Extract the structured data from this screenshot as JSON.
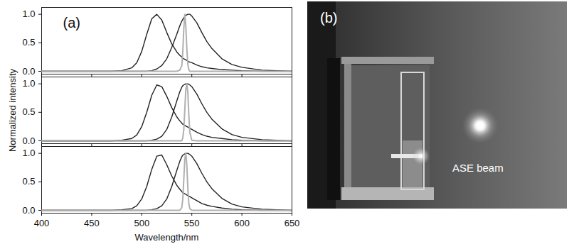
{
  "chart_data": [
    {
      "type": "line",
      "annotation": "(a)",
      "tick_labels": "y",
      "xlim": [
        400,
        650
      ],
      "xticks": [
        400,
        450,
        500,
        550,
        600,
        650
      ],
      "ylim": [
        -0.05,
        1.12
      ],
      "yticks": [
        {
          "value": 0,
          "label": "0.0"
        },
        {
          "value": 0.5,
          "label": "0.5"
        },
        {
          "value": 1,
          "label": "1.0"
        }
      ],
      "x": [
        400,
        450,
        470,
        480,
        490,
        495,
        500,
        505,
        510,
        515,
        520,
        525,
        530,
        535,
        538,
        540,
        541,
        542,
        543,
        544,
        545,
        546,
        547,
        548,
        550,
        555,
        560,
        565,
        570,
        580,
        590,
        600,
        620,
        650
      ],
      "series": [
        {
          "color": "#222222",
          "values": [
            0,
            0,
            0,
            0.01,
            0.06,
            0.15,
            0.35,
            0.65,
            0.92,
            1.0,
            0.9,
            0.68,
            0.48,
            0.34,
            0.28,
            0.25,
            0.23,
            0.22,
            0.21,
            0.2,
            0.19,
            0.18,
            0.17,
            0.16,
            0.15,
            0.11,
            0.08,
            0.06,
            0.05,
            0.03,
            0.02,
            0.01,
            0,
            0
          ]
        },
        {
          "color": "#222222",
          "values": [
            0,
            0,
            0,
            0,
            0,
            0,
            0,
            0,
            0.01,
            0.04,
            0.1,
            0.22,
            0.42,
            0.65,
            0.8,
            0.88,
            0.91,
            0.94,
            0.96,
            0.98,
            0.99,
            1.0,
            1.0,
            1.0,
            0.97,
            0.85,
            0.68,
            0.52,
            0.4,
            0.22,
            0.12,
            0.07,
            0.02,
            0
          ]
        },
        {
          "color": "#b0b0b0",
          "values": [
            0,
            0,
            0,
            0,
            0,
            0,
            0,
            0,
            0,
            0,
            0,
            0,
            0,
            0,
            0.02,
            0.1,
            0.35,
            0.75,
            1.0,
            0.8,
            0.4,
            0.12,
            0.03,
            0,
            0,
            0,
            0,
            0,
            0,
            0,
            0,
            0,
            0,
            0
          ]
        }
      ]
    },
    {
      "type": "line",
      "ylabel": "Normalized intensity",
      "tick_labels": "y",
      "xlim": [
        400,
        650
      ],
      "xticks": [
        400,
        450,
        500,
        550,
        600,
        650
      ],
      "ylim": [
        -0.05,
        1.12
      ],
      "yticks": [
        {
          "value": 0,
          "label": "0.0"
        },
        {
          "value": 0.5,
          "label": "0.5"
        },
        {
          "value": 1,
          "label": "1.0"
        }
      ],
      "x": [
        400,
        450,
        470,
        480,
        490,
        495,
        500,
        505,
        510,
        515,
        520,
        525,
        530,
        535,
        538,
        540,
        541,
        542,
        543,
        544,
        545,
        546,
        547,
        548,
        550,
        555,
        560,
        565,
        570,
        580,
        590,
        600,
        620,
        650
      ],
      "series": [
        {
          "color": "#222222",
          "values": [
            0,
            0,
            0,
            0.01,
            0.04,
            0.1,
            0.25,
            0.5,
            0.8,
            0.98,
            0.95,
            0.78,
            0.58,
            0.42,
            0.35,
            0.31,
            0.29,
            0.28,
            0.27,
            0.26,
            0.25,
            0.24,
            0.23,
            0.22,
            0.2,
            0.15,
            0.11,
            0.08,
            0.06,
            0.04,
            0.02,
            0.01,
            0,
            0
          ]
        },
        {
          "color": "#222222",
          "values": [
            0,
            0,
            0,
            0,
            0,
            0,
            0,
            0,
            0.01,
            0.03,
            0.08,
            0.2,
            0.42,
            0.7,
            0.86,
            0.94,
            0.97,
            0.98,
            0.99,
            1.0,
            1.0,
            1.0,
            0.99,
            0.98,
            0.95,
            0.82,
            0.65,
            0.5,
            0.38,
            0.21,
            0.11,
            0.06,
            0.02,
            0
          ]
        },
        {
          "color": "#b0b0b0",
          "values": [
            0,
            0,
            0,
            0,
            0,
            0,
            0,
            0,
            0,
            0,
            0,
            0,
            0,
            0,
            0,
            0,
            0.05,
            0.2,
            0.55,
            0.9,
            1.0,
            0.85,
            0.45,
            0.15,
            0.01,
            0,
            0,
            0,
            0,
            0,
            0,
            0,
            0,
            0
          ]
        }
      ]
    },
    {
      "type": "line",
      "xlabel": "Wavelength/nm",
      "tick_labels": true,
      "xlim": [
        400,
        650
      ],
      "xticks": [
        400,
        450,
        500,
        550,
        600,
        650
      ],
      "ylim": [
        -0.05,
        1.12
      ],
      "yticks": [
        {
          "value": 0,
          "label": "0.0"
        },
        {
          "value": 0.5,
          "label": "0.5"
        },
        {
          "value": 1,
          "label": "1.0"
        }
      ],
      "x": [
        400,
        450,
        470,
        480,
        490,
        495,
        500,
        505,
        510,
        515,
        520,
        525,
        530,
        535,
        538,
        540,
        541,
        542,
        543,
        544,
        545,
        546,
        547,
        548,
        550,
        555,
        560,
        565,
        570,
        580,
        590,
        600,
        620,
        650
      ],
      "series": [
        {
          "color": "#222222",
          "values": [
            0,
            0,
            0,
            0.01,
            0.03,
            0.08,
            0.2,
            0.42,
            0.72,
            0.95,
            0.97,
            0.8,
            0.6,
            0.44,
            0.37,
            0.33,
            0.31,
            0.3,
            0.29,
            0.28,
            0.27,
            0.26,
            0.25,
            0.24,
            0.22,
            0.17,
            0.12,
            0.09,
            0.07,
            0.04,
            0.02,
            0.01,
            0,
            0
          ]
        },
        {
          "color": "#222222",
          "values": [
            0,
            0,
            0,
            0,
            0,
            0,
            0,
            0,
            0.01,
            0.03,
            0.08,
            0.2,
            0.42,
            0.7,
            0.86,
            0.94,
            0.97,
            0.98,
            0.99,
            1.0,
            1.0,
            1.0,
            0.99,
            0.98,
            0.95,
            0.82,
            0.65,
            0.5,
            0.38,
            0.21,
            0.11,
            0.06,
            0.02,
            0
          ]
        },
        {
          "color": "#b0b0b0",
          "values": [
            0,
            0,
            0,
            0,
            0,
            0,
            0,
            0,
            0,
            0,
            0,
            0,
            0,
            0,
            0,
            0.05,
            0.2,
            0.55,
            0.9,
            1.0,
            0.8,
            0.4,
            0.12,
            0.03,
            0,
            0,
            0,
            0,
            0,
            0,
            0,
            0,
            0,
            0
          ]
        }
      ]
    }
  ],
  "panel_b": {
    "label": "(b)",
    "annotation": "ASE beam"
  }
}
